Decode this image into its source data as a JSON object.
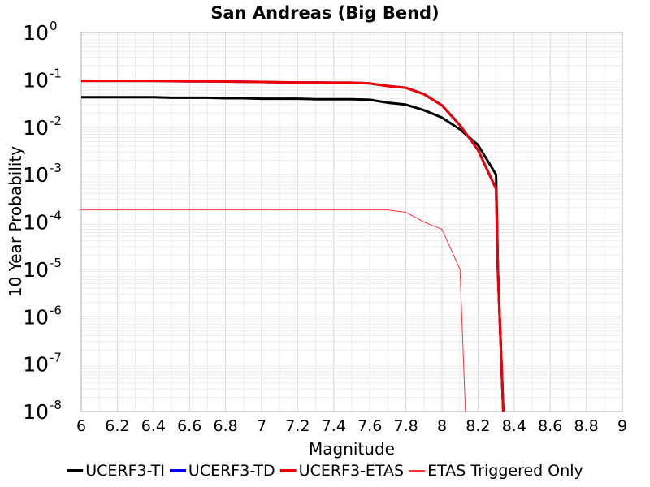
{
  "chart_data": {
    "type": "line",
    "title": "San Andreas (Big Bend)",
    "xlabel": "Magnitude",
    "ylabel": "10 Year Probability",
    "xlim": [
      6,
      9
    ],
    "ylim": [
      1e-08,
      1
    ],
    "yscale": "log",
    "grid": true,
    "legend_position": "bottom",
    "x_ticks": [
      "6",
      "6.2",
      "6.4",
      "6.6",
      "6.8",
      "7",
      "7.2",
      "7.4",
      "7.6",
      "7.8",
      "8",
      "8.2",
      "8.4",
      "8.6",
      "8.8",
      "9"
    ],
    "y_ticks": [
      {
        "base": "10",
        "exp": "0",
        "value": 1
      },
      {
        "base": "10",
        "exp": "-1",
        "value": 0.1
      },
      {
        "base": "10",
        "exp": "-2",
        "value": 0.01
      },
      {
        "base": "10",
        "exp": "-3",
        "value": 0.001
      },
      {
        "base": "10",
        "exp": "-4",
        "value": 0.0001
      },
      {
        "base": "10",
        "exp": "-5",
        "value": 1e-05
      },
      {
        "base": "10",
        "exp": "-6",
        "value": 1e-06
      },
      {
        "base": "10",
        "exp": "-7",
        "value": 1e-07
      },
      {
        "base": "10",
        "exp": "-8",
        "value": 1e-08
      }
    ],
    "series": [
      {
        "name": "UCERF3-TI",
        "color": "#000000",
        "width": 3,
        "x": [
          6.0,
          6.1,
          6.2,
          6.3,
          6.4,
          6.5,
          6.6,
          6.7,
          6.8,
          6.9,
          7.0,
          7.1,
          7.2,
          7.3,
          7.4,
          7.5,
          7.6,
          7.7,
          7.8,
          7.9,
          8.0,
          8.1,
          8.2,
          8.3,
          8.31,
          8.34
        ],
        "y": [
          0.043,
          0.043,
          0.043,
          0.043,
          0.043,
          0.042,
          0.042,
          0.042,
          0.041,
          0.041,
          0.04,
          0.04,
          0.04,
          0.039,
          0.039,
          0.039,
          0.038,
          0.033,
          0.03,
          0.023,
          0.016,
          0.009,
          0.0042,
          0.001,
          1e-05,
          1e-08
        ]
      },
      {
        "name": "UCERF3-TD",
        "color": "#0000ff",
        "width": 3,
        "x": [
          6.0,
          6.1,
          6.2,
          6.3,
          6.4,
          6.5,
          6.6,
          6.7,
          6.8,
          6.9,
          7.0,
          7.1,
          7.2,
          7.3,
          7.4,
          7.5,
          7.6,
          7.7,
          7.8,
          7.9,
          8.0,
          8.1,
          8.2,
          8.3,
          8.31,
          8.34
        ],
        "y": [
          0.095,
          0.095,
          0.095,
          0.095,
          0.095,
          0.094,
          0.093,
          0.093,
          0.092,
          0.091,
          0.09,
          0.089,
          0.088,
          0.088,
          0.087,
          0.087,
          0.084,
          0.074,
          0.068,
          0.05,
          0.029,
          0.011,
          0.0033,
          0.0005,
          1e-05,
          1e-08
        ]
      },
      {
        "name": "UCERF3-ETAS",
        "color": "#ee0000",
        "width": 3,
        "x": [
          6.0,
          6.1,
          6.2,
          6.3,
          6.4,
          6.5,
          6.6,
          6.7,
          6.8,
          6.9,
          7.0,
          7.1,
          7.2,
          7.3,
          7.4,
          7.5,
          7.6,
          7.7,
          7.8,
          7.9,
          8.0,
          8.1,
          8.2,
          8.3,
          8.31,
          8.34
        ],
        "y": [
          0.095,
          0.095,
          0.095,
          0.095,
          0.095,
          0.094,
          0.093,
          0.093,
          0.092,
          0.091,
          0.09,
          0.089,
          0.088,
          0.088,
          0.087,
          0.087,
          0.084,
          0.074,
          0.068,
          0.05,
          0.029,
          0.011,
          0.0033,
          0.0005,
          1e-05,
          1e-08
        ]
      },
      {
        "name": "ETAS Triggered Only",
        "color": "#ff3333",
        "width": 1,
        "x": [
          6.0,
          6.5,
          7.0,
          7.5,
          7.7,
          7.8,
          7.9,
          8.0,
          8.1,
          8.13
        ],
        "y": [
          0.00018,
          0.00018,
          0.00018,
          0.00018,
          0.00018,
          0.00016,
          0.0001,
          7e-05,
          1e-05,
          1e-08
        ]
      }
    ]
  }
}
